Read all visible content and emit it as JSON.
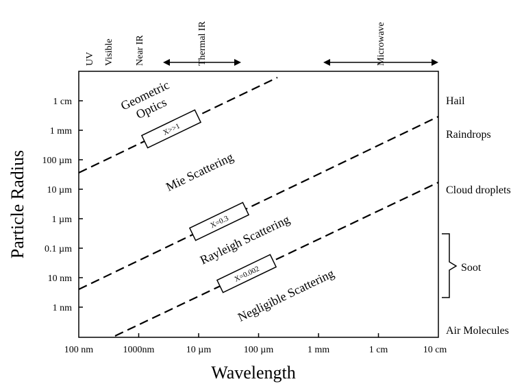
{
  "axes": {
    "x_title": "Wavelength",
    "y_title": "Particle Radius"
  },
  "x_ticks": [
    "100 nm",
    "1000nm",
    "10 µm",
    "100 µm",
    "1 mm",
    "1 cm",
    "10 cm"
  ],
  "y_ticks": [
    "1 cm",
    "1 mm",
    "100 µm",
    "10 µm",
    "1 µm",
    "0.1 µm",
    "10 nm",
    "1 nm"
  ],
  "bands": {
    "uv": "UV",
    "visible": "Visible",
    "near_ir": "Near IR",
    "thermal_ir": "Thermal IR",
    "microwave": "Microwave"
  },
  "particles": {
    "hail": "Hail",
    "raindrops": "Raindrops",
    "cloud_droplets": "Cloud droplets",
    "soot": "Soot",
    "air_molecules": "Air Molecules"
  },
  "regions": {
    "geometric_1": "Geometric",
    "geometric_2": "Optics",
    "mie": "Mie Scattering",
    "rayleigh": "Rayleigh Scattering",
    "negligible": "Negligible Scattering"
  },
  "boundaries": {
    "x_large": "X>>1",
    "x_mid": "X=0.3",
    "x_small": "X=0.002"
  }
}
